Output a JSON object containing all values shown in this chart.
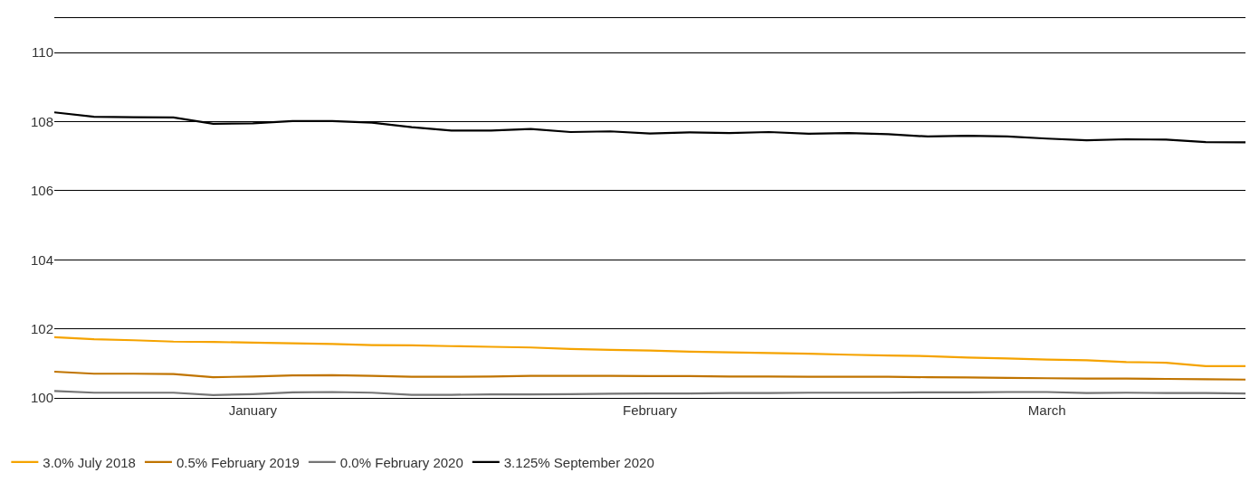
{
  "chart_data": {
    "type": "line",
    "categories": [
      null,
      null,
      null,
      null,
      null,
      "January",
      null,
      null,
      null,
      null,
      null,
      null,
      null,
      null,
      null,
      "February",
      null,
      null,
      null,
      null,
      null,
      null,
      null,
      null,
      null,
      "March",
      null,
      null,
      null,
      null,
      null
    ],
    "ylim": [
      100,
      111
    ],
    "yticks": [
      100,
      102,
      104,
      106,
      108,
      110
    ],
    "grid": "y",
    "legend": "bottom",
    "line_style": "solid",
    "marker": "none",
    "series": [
      {
        "name": "3.0% July 2018",
        "color": "#f5a300",
        "values": [
          101.76,
          101.7,
          101.67,
          101.63,
          101.62,
          101.6,
          101.58,
          101.56,
          101.53,
          101.52,
          101.5,
          101.48,
          101.46,
          101.42,
          101.39,
          101.37,
          101.34,
          101.32,
          101.3,
          101.28,
          101.25,
          101.23,
          101.21,
          101.17,
          101.14,
          101.11,
          101.09,
          101.04,
          101.02,
          100.92,
          100.92
        ]
      },
      {
        "name": "0.5% February 2019",
        "color": "#c07400",
        "values": [
          100.76,
          100.7,
          100.7,
          100.69,
          100.6,
          100.62,
          100.65,
          100.66,
          100.64,
          100.61,
          100.61,
          100.62,
          100.64,
          100.64,
          100.64,
          100.63,
          100.63,
          100.62,
          100.62,
          100.61,
          100.61,
          100.61,
          100.6,
          100.59,
          100.58,
          100.57,
          100.56,
          100.56,
          100.55,
          100.54,
          100.53
        ]
      },
      {
        "name": "0.0% February 2020",
        "color": "#757575",
        "values": [
          100.2,
          100.15,
          100.15,
          100.15,
          100.08,
          100.11,
          100.16,
          100.17,
          100.15,
          100.09,
          100.09,
          100.1,
          100.1,
          100.11,
          100.12,
          100.13,
          100.13,
          100.14,
          100.14,
          100.15,
          100.15,
          100.15,
          100.16,
          100.16,
          100.17,
          100.17,
          100.14,
          100.15,
          100.14,
          100.14,
          100.13
        ]
      },
      {
        "name": "3.125% September 2020",
        "color": "#000000",
        "values": [
          108.27,
          108.14,
          108.13,
          108.12,
          107.94,
          107.95,
          108.02,
          108.02,
          107.97,
          107.84,
          107.74,
          107.74,
          107.79,
          107.7,
          107.72,
          107.66,
          107.69,
          107.67,
          107.7,
          107.65,
          107.67,
          107.64,
          107.57,
          107.59,
          107.57,
          107.51,
          107.46,
          107.49,
          107.48,
          107.41,
          107.4
        ]
      }
    ]
  }
}
